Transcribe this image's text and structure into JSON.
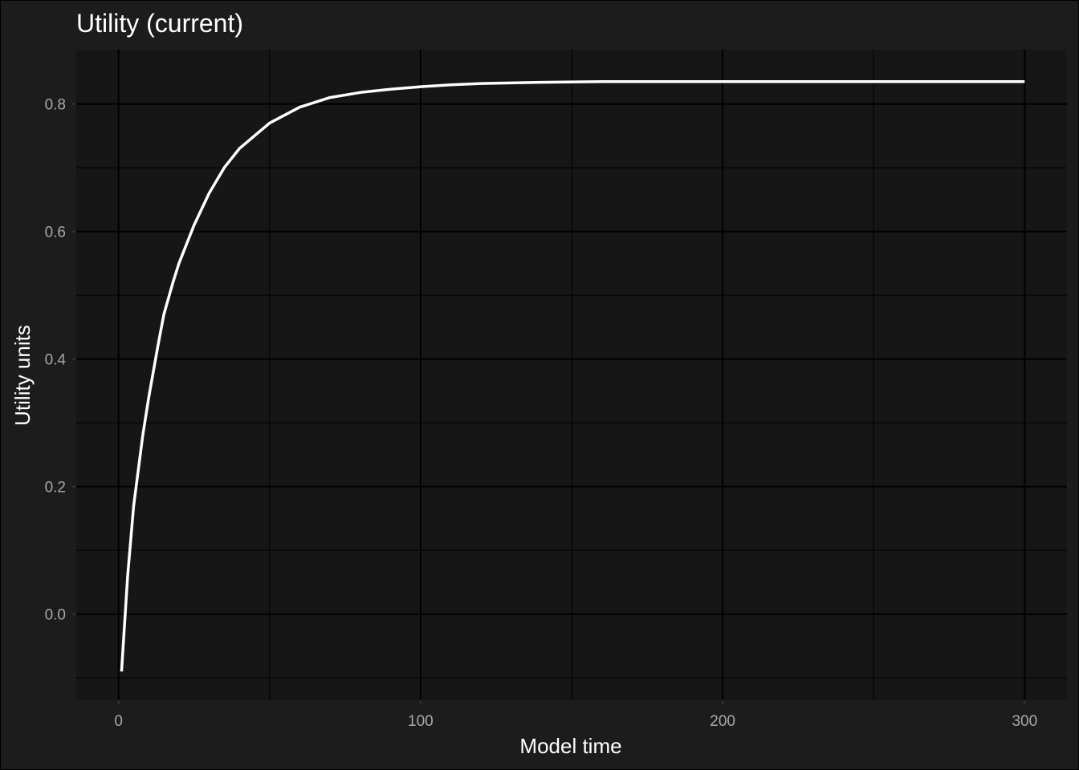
{
  "chart_data": {
    "type": "line",
    "title": "Utility (current)",
    "xlabel": "Model time",
    "ylabel": "Utility units",
    "xlim": [
      -14,
      314
    ],
    "ylim": [
      -0.135,
      0.885
    ],
    "x_ticks": [
      0,
      100,
      200,
      300
    ],
    "x_tick_labels": [
      "0",
      "100",
      "200",
      "300"
    ],
    "x_minor_ticks": [
      50,
      150,
      250
    ],
    "y_ticks": [
      0.0,
      0.2,
      0.4,
      0.6,
      0.8
    ],
    "y_tick_labels": [
      "0.0",
      "0.2",
      "0.4",
      "0.6",
      "0.8"
    ],
    "y_minor_ticks": [
      -0.1,
      0.1,
      0.3,
      0.5,
      0.7
    ],
    "grid": true,
    "legend": "none",
    "colors": {
      "background": "#1c1c1c",
      "panel": "#161616",
      "grid": "#000000",
      "line": "#ffffff",
      "text": "#ffffff",
      "tick_text": "#a8a8a8"
    },
    "series": [
      {
        "x": [
          1,
          3,
          5,
          8,
          10,
          13,
          15,
          18,
          20,
          25,
          30,
          35,
          40,
          45,
          50,
          60,
          70,
          80,
          90,
          100,
          110,
          120,
          140,
          160,
          200,
          250,
          300
        ],
        "y": [
          -0.09,
          0.06,
          0.17,
          0.28,
          0.34,
          0.42,
          0.47,
          0.52,
          0.55,
          0.61,
          0.66,
          0.7,
          0.73,
          0.75,
          0.77,
          0.795,
          0.81,
          0.818,
          0.823,
          0.827,
          0.83,
          0.832,
          0.834,
          0.835,
          0.835,
          0.835,
          0.835
        ]
      }
    ]
  }
}
